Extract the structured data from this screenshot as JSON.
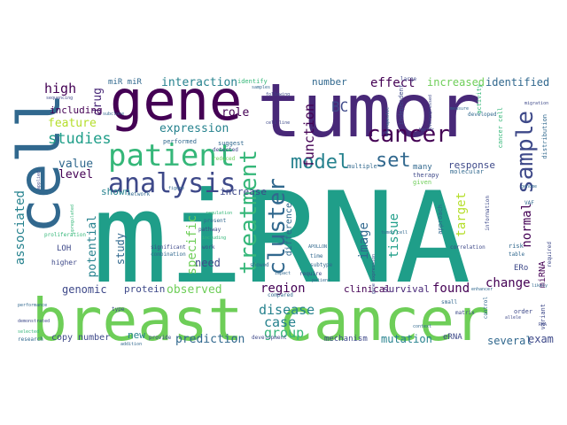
{
  "words": {
    "mirna": "miRNA",
    "breast_cancer": "breast cancer",
    "tumor": "tumor",
    "cell": "cell",
    "gene": "gene",
    "patient": "patient",
    "analysis": "analysis",
    "treatment": "treatment",
    "cluster": "cluster",
    "model": "model",
    "cancer": "cancer",
    "sample": "sample",
    "set": "set",
    "bc": "BC",
    "high": "high",
    "mir_mir": "miR miR",
    "interaction": "interaction",
    "role": "role",
    "effect": "effect",
    "increased": "increased",
    "identified": "identified",
    "function": "function",
    "number": "number",
    "expression": "expression",
    "drug": "drug",
    "feature": "feature",
    "studies": "studies",
    "including": "including",
    "value": "value",
    "level": "level",
    "associated": "associated",
    "potential": "potential",
    "study": "study",
    "specific": "specific",
    "need": "need",
    "increase": "increase",
    "shown": "shown",
    "difference": "difference",
    "tissue": "tissue",
    "target": "target",
    "normal": "normal",
    "change": "change",
    "response": "response",
    "image": "image",
    "region": "region",
    "found": "found",
    "observed": "observed",
    "genomic": "genomic",
    "protein": "protein",
    "disease": "disease",
    "case": "case",
    "group": "group",
    "clinical": "clinical",
    "survival": "survival",
    "mutation": "mutation",
    "prediction": "prediction",
    "several": "several",
    "example": "example",
    "mechanism": "mechanism",
    "copy_number": "copy number",
    "new": "new",
    "erna": "eRNA",
    "mirna_small": "miRNA",
    "ero": "ERo",
    "loh": "LOH",
    "higher": "higher",
    "many": "many",
    "significant": "significant",
    "combination": "combination",
    "pathway": "pathway",
    "work": "work",
    "showed": "showed",
    "require": "require",
    "subtype": "subtype",
    "present": "present",
    "network": "network",
    "performed": "performed",
    "suggest": "suggest",
    "identify": "identify",
    "multiple": "multiple",
    "therapy": "therapy",
    "given": "given",
    "molecular": "molecular",
    "approach": "approach",
    "cancer_cell": "cancer cell",
    "information": "information",
    "risk": "risk",
    "table": "table",
    "correlation": "correlation",
    "matrix": "matrix",
    "small": "small",
    "order": "order",
    "control": "control",
    "developed": "developed",
    "development": "development",
    "compared": "compared",
    "provide": "provide",
    "method": "method",
    "data": "data",
    "time": "time",
    "large": "large",
    "type": "type",
    "research": "research",
    "addition": "addition",
    "reduced": "reduced",
    "detected": "detected",
    "related": "related",
    "sequencing": "sequencing",
    "subclone": "subclone",
    "impact": "impact",
    "independent": "independent",
    "activity": "activity",
    "migration": "migration",
    "distribution": "distribution",
    "variant": "variant",
    "required": "required",
    "enhancer": "enhancer",
    "likely": "likely",
    "cell_line": "cell line",
    "vaf": "VAF",
    "apollon": "APOLLON",
    "following": "following",
    "therapeutic": "therapeutic",
    "overexpressed": "overexpressed",
    "performance": "performance",
    "demonstrated": "demonstrated",
    "selected": "selected",
    "proliferation": "proliferation",
    "gene_expression": "gene expression",
    "measure": "measure",
    "upregulated": "upregulated",
    "samples": "samples",
    "regulation": "regulation",
    "patient_small": "patient",
    "allele": "allele",
    "tumor_cell": "tumor cell",
    "rna": "RNA",
    "applied": "applied",
    "figure": "figure",
    "factor": "factor",
    "including_small": "including",
    "genome": "genome",
    "context": "context"
  },
  "colors": {
    "dark_purple": "#440154",
    "purple": "#482878",
    "indigo": "#3e4989",
    "blue": "#31688e",
    "teal": "#26828e",
    "green_teal": "#1f9e89",
    "green": "#35b779",
    "light_green": "#6ece58",
    "yellow_green": "#b5de2b",
    "yellow": "#fde725"
  }
}
